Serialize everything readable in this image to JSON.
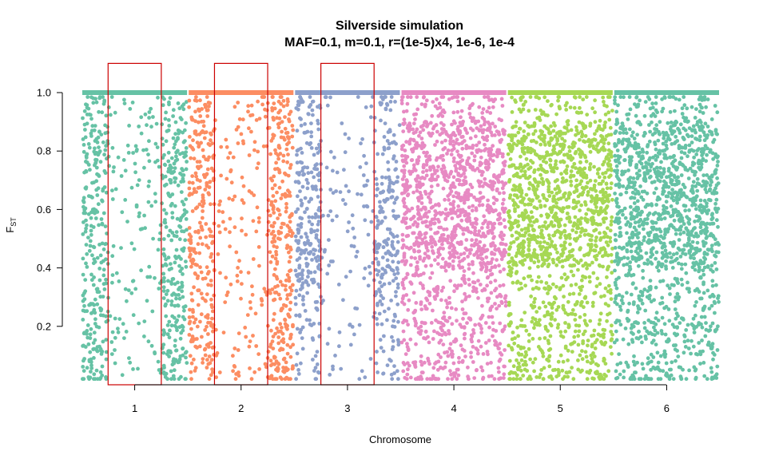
{
  "chart_data": {
    "type": "scatter",
    "title": "Silverside simulation",
    "subtitle": "MAF=0.1, m=0.1, r=(1e-5)x4, 1e-6, 1e-4",
    "xlabel": "Chromosome",
    "ylabel_main": "F",
    "ylabel_sub": "ST",
    "xlim": [
      0.5,
      6.5
    ],
    "ylim": [
      0,
      1
    ],
    "x_ticks": [
      "1",
      "2",
      "3",
      "4",
      "5",
      "6"
    ],
    "y_ticks": [
      "0.2",
      "0.4",
      "0.6",
      "0.8",
      "1.0"
    ],
    "grid": false,
    "legend": "none",
    "series": [
      {
        "chromosome": 1,
        "color": "#66c2a5",
        "x_range": [
          0.5,
          1.5
        ],
        "points_below_1": 700,
        "fixed_at_1": true
      },
      {
        "chromosome": 2,
        "color": "#fc8d62",
        "x_range": [
          1.5,
          2.5
        ],
        "points_below_1": 700,
        "fixed_at_1": true
      },
      {
        "chromosome": 3,
        "color": "#8da0cb",
        "x_range": [
          2.5,
          3.5
        ],
        "points_below_1": 600,
        "fixed_at_1": true
      },
      {
        "chromosome": 4,
        "color": "#e78ac3",
        "x_range": [
          3.5,
          4.5
        ],
        "points_below_1": 1400,
        "fixed_at_1": true
      },
      {
        "chromosome": 5,
        "color": "#a6d854",
        "x_range": [
          4.5,
          5.5
        ],
        "points_below_1": 1400,
        "fixed_at_1": true
      },
      {
        "chromosome": 6,
        "color": "#66c2a5",
        "x_range": [
          5.5,
          6.5
        ],
        "points_below_1": 1400,
        "fixed_at_1": true
      }
    ],
    "annotations": [
      {
        "type": "rect",
        "color": "#cc0000",
        "x_range": [
          0.75,
          1.25
        ],
        "y_range": [
          0,
          1.1
        ]
      },
      {
        "type": "rect",
        "color": "#cc0000",
        "x_range": [
          1.75,
          2.25
        ],
        "y_range": [
          0,
          1.1
        ]
      },
      {
        "type": "rect",
        "color": "#cc0000",
        "x_range": [
          2.75,
          3.25
        ],
        "y_range": [
          0,
          1.1
        ]
      }
    ]
  }
}
